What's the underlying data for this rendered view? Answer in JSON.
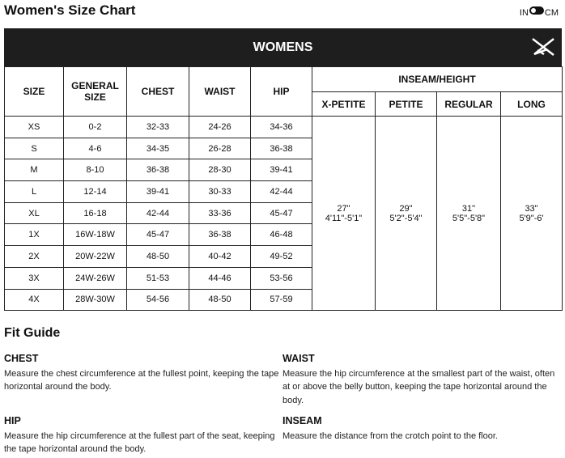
{
  "title": "Women's Size Chart",
  "units": {
    "left": "IN",
    "right": "CM"
  },
  "table": {
    "banner": "WOMENS",
    "headers": {
      "size": "SIZE",
      "general": "GENERAL SIZE",
      "chest": "CHEST",
      "waist": "WAIST",
      "hip": "HIP",
      "inseam": "INSEAM/HEIGHT",
      "xpetite": "X-PETITE",
      "petite": "PETITE",
      "regular": "REGULAR",
      "long": "LONG"
    },
    "rows": [
      [
        "XS",
        "0-2",
        "32-33",
        "24-26",
        "34-36"
      ],
      [
        "S",
        "4-6",
        "34-35",
        "26-28",
        "36-38"
      ],
      [
        "M",
        "8-10",
        "36-38",
        "28-30",
        "39-41"
      ],
      [
        "L",
        "12-14",
        "39-41",
        "30-33",
        "42-44"
      ],
      [
        "XL",
        "16-18",
        "42-44",
        "33-36",
        "45-47"
      ],
      [
        "1X",
        "16W-18W",
        "45-47",
        "36-38",
        "46-48"
      ],
      [
        "2X",
        "20W-22W",
        "48-50",
        "40-42",
        "49-52"
      ],
      [
        "3X",
        "24W-26W",
        "51-53",
        "44-46",
        "53-56"
      ],
      [
        "4X",
        "28W-30W",
        "54-56",
        "48-50",
        "57-59"
      ]
    ],
    "inseam": [
      {
        "inseam": "27\"",
        "height": "4'11\"-5'1\""
      },
      {
        "inseam": "29\"",
        "height": "5'2\"-5'4\""
      },
      {
        "inseam": "31\"",
        "height": "5'5\"-5'8\""
      },
      {
        "inseam": "33\"",
        "height": "5'9\"-6'"
      }
    ]
  },
  "fit_guide": {
    "title": "Fit Guide",
    "chest": {
      "label": "CHEST",
      "text": "Measure the chest circumference at the fullest point, keeping the tape horizontal around the body."
    },
    "waist": {
      "label": "WAIST",
      "text": "Measure the hip circumference at the smallest part of the waist, often at or above the belly button, keeping the tape horizontal around the body."
    },
    "hip": {
      "label": "HIP",
      "text": "Measure the hip circumference at the fullest part of the seat, keeping the tape horizontal around the body."
    },
    "inseam": {
      "label": "INSEAM",
      "text": "Measure the distance from the crotch point to the floor."
    }
  }
}
